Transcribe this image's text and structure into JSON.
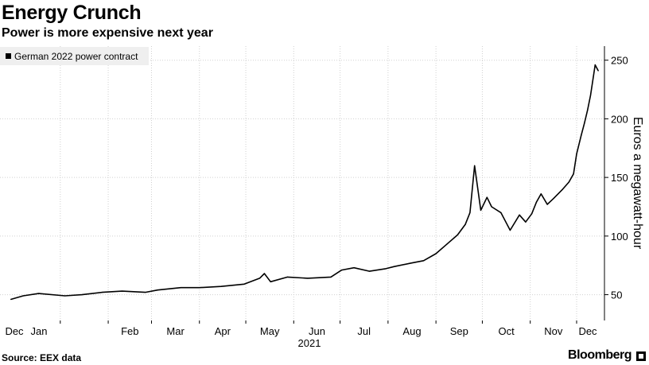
{
  "header": {
    "title": "Energy Crunch",
    "subtitle": "Power is more expensive next year"
  },
  "footer": {
    "source": "Source: EEX data",
    "brand": "Bloomberg"
  },
  "chart_data": {
    "type": "line",
    "title": "Energy Crunch",
    "subtitle": "Power is more expensive next year",
    "ylabel": "Euros a megawatt-hour",
    "xlabel": "2021",
    "ylim": [
      28,
      262
    ],
    "yticks": [
      50,
      100,
      150,
      200,
      250
    ],
    "grid": true,
    "legend_position": "top-left",
    "x_tick_labels": [
      "Dec",
      "Jan",
      "Feb",
      "Mar",
      "Apr",
      "May",
      "Jun",
      "Jul",
      "Aug",
      "Sep",
      "Oct",
      "Nov",
      "Dec"
    ],
    "x_year_label": "2021",
    "series": [
      {
        "name": "German 2022 power contract",
        "color": "#000000",
        "x": [
          "2020-11-30",
          "2020-12-08",
          "2020-12-18",
          "2021-01-04",
          "2021-01-15",
          "2021-01-28",
          "2021-02-10",
          "2021-02-25",
          "2021-03-05",
          "2021-03-20",
          "2021-04-01",
          "2021-04-15",
          "2021-04-30",
          "2021-05-10",
          "2021-05-13",
          "2021-05-17",
          "2021-05-28",
          "2021-06-10",
          "2021-06-25",
          "2021-07-02",
          "2021-07-10",
          "2021-07-20",
          "2021-07-30",
          "2021-08-05",
          "2021-08-16",
          "2021-08-24",
          "2021-09-01",
          "2021-09-08",
          "2021-09-15",
          "2021-09-20",
          "2021-09-23",
          "2021-09-26",
          "2021-09-30",
          "2021-10-04",
          "2021-10-07",
          "2021-10-13",
          "2021-10-19",
          "2021-10-25",
          "2021-10-29",
          "2021-11-02",
          "2021-11-05",
          "2021-11-08",
          "2021-11-12",
          "2021-11-16",
          "2021-11-22",
          "2021-11-26",
          "2021-11-29",
          "2021-12-01",
          "2021-12-04",
          "2021-12-06",
          "2021-12-08",
          "2021-12-10",
          "2021-12-13",
          "2021-12-15"
        ],
        "values": [
          46,
          49,
          51,
          49,
          50,
          52,
          53,
          52,
          54,
          56,
          56,
          57,
          59,
          64,
          68,
          61,
          65,
          64,
          65,
          71,
          73,
          70,
          72,
          74,
          77,
          79,
          85,
          93,
          101,
          110,
          120,
          160,
          122,
          133,
          125,
          120,
          105,
          118,
          112,
          119,
          129,
          136,
          127,
          132,
          140,
          146,
          153,
          170,
          186,
          196,
          207,
          220,
          246,
          241
        ]
      }
    ]
  }
}
